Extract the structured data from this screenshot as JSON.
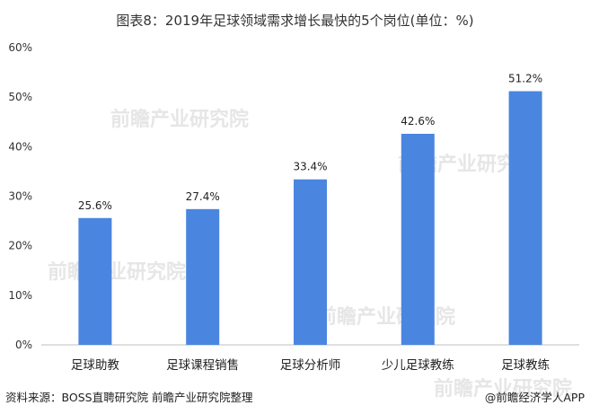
{
  "chart_data": {
    "type": "bar",
    "title": "图表8：2019年足球领域需求增长最快的5个岗位(单位：%)",
    "categories": [
      "足球助教",
      "足球课程销售",
      "足球分析师",
      "少儿足球教练",
      "足球教练"
    ],
    "values": [
      25.6,
      27.4,
      33.4,
      42.6,
      51.2
    ],
    "data_labels": [
      "25.6%",
      "27.4%",
      "33.4%",
      "42.6%",
      "51.2%"
    ],
    "ylim": [
      0,
      60
    ],
    "yticks": [
      "0%",
      "10%",
      "20%",
      "30%",
      "40%",
      "50%",
      "60%"
    ],
    "xlabel": "",
    "ylabel": "",
    "grid": false,
    "bar_color": "#4a86e0"
  },
  "footer": {
    "source": "资料来源：BOSS直聘研究院 前瞻产业研究院整理",
    "credit": "@前瞻经济学人APP"
  },
  "watermark": "前瞻产业研究院"
}
